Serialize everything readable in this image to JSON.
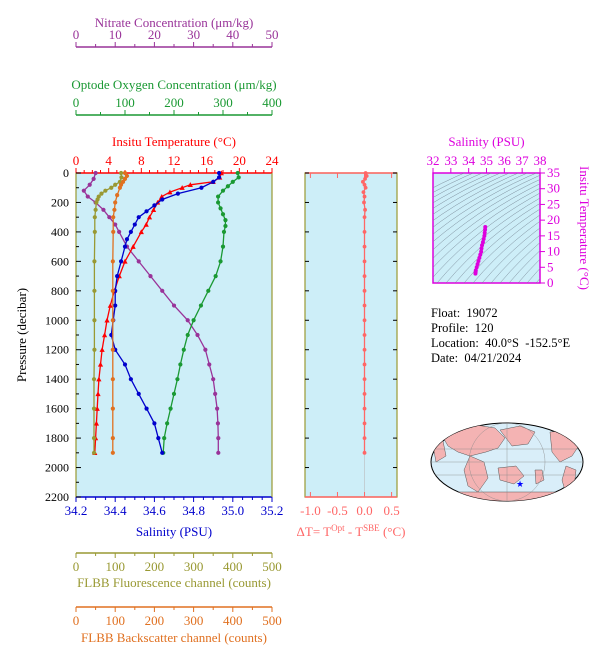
{
  "float_info": {
    "float_label": "Float:",
    "float_id": "19072",
    "profile_label": "Profile:",
    "profile_id": "120",
    "location_label": "Location:",
    "location_value": "40.0°S  -152.5°E",
    "date_label": "Date:",
    "date_value": "04/21/2024"
  },
  "colors": {
    "nitrate": "#993399",
    "oxygen": "#1a9933",
    "temperature": "#ff0000",
    "salinity": "#0000cc",
    "fluorescence": "#999933",
    "backscatter": "#e07020",
    "delta_t": "#ff6666",
    "ts": "#dd00dd",
    "panel_bg": "#cdeef8"
  },
  "chart_data": [
    {
      "type": "line",
      "title": "",
      "ylabel": "Pressure (decibar)",
      "y_ticks": [
        "0",
        "200",
        "400",
        "600",
        "800",
        "1000",
        "1200",
        "1400",
        "1600",
        "1800",
        "2000",
        "2200"
      ],
      "ylim": [
        0,
        2200
      ],
      "y_reversed": true,
      "axes": {
        "nitrate": {
          "label": "Nitrate Concentration (μm/kg)",
          "range": [
            0,
            50
          ],
          "ticks": [
            "0",
            "10",
            "20",
            "30",
            "40",
            "50"
          ]
        },
        "oxygen": {
          "label": "Optode Oxygen Concentration (μm/kg)",
          "range": [
            0,
            400
          ],
          "ticks": [
            "0",
            "100",
            "200",
            "300",
            "400"
          ]
        },
        "temperature": {
          "label": "Insitu Temperature (°C)",
          "range": [
            0,
            24
          ],
          "ticks": [
            "0",
            "4",
            "8",
            "12",
            "16",
            "20",
            "24"
          ]
        },
        "salinity": {
          "label": "Salinity (PSU)",
          "range": [
            34.2,
            35.2
          ],
          "ticks": [
            "34.2",
            "34.4",
            "34.6",
            "34.8",
            "35.0",
            "35.2"
          ]
        },
        "fluorescence": {
          "label": "FLBB Fluorescence channel (counts)",
          "range": [
            0,
            500
          ],
          "ticks": [
            "0",
            "100",
            "200",
            "300",
            "400",
            "500"
          ]
        },
        "backscatter": {
          "label": "FLBB Backscatter channel (counts)",
          "range": [
            0,
            500
          ],
          "ticks": [
            "0",
            "100",
            "200",
            "300",
            "400",
            "500"
          ]
        }
      },
      "series": [
        {
          "name": "Nitrate Concentration (μm/kg)",
          "axis": "nitrate",
          "points": [
            [
              0,
              5
            ],
            [
              40,
              4.5
            ],
            [
              80,
              3.5
            ],
            [
              120,
              2
            ],
            [
              160,
              3
            ],
            [
              200,
              5
            ],
            [
              250,
              7
            ],
            [
              300,
              8.5
            ],
            [
              350,
              10
            ],
            [
              400,
              11
            ],
            [
              500,
              13
            ],
            [
              600,
              16
            ],
            [
              700,
              19
            ],
            [
              800,
              22
            ],
            [
              900,
              25
            ],
            [
              1000,
              28.5
            ],
            [
              1100,
              31
            ],
            [
              1200,
              33
            ],
            [
              1300,
              34
            ],
            [
              1400,
              35
            ],
            [
              1500,
              35.5
            ],
            [
              1600,
              36
            ],
            [
              1700,
              36.2
            ],
            [
              1800,
              36.3
            ],
            [
              1900,
              36.3
            ]
          ]
        },
        {
          "name": "Optode Oxygen Concentration (μm/kg)",
          "axis": "oxygen",
          "points": [
            [
              0,
              330
            ],
            [
              30,
              332
            ],
            [
              60,
              320
            ],
            [
              90,
              310
            ],
            [
              120,
              300
            ],
            [
              160,
              290
            ],
            [
              200,
              290
            ],
            [
              240,
              295
            ],
            [
              280,
              300
            ],
            [
              320,
              305
            ],
            [
              360,
              305
            ],
            [
              400,
              302
            ],
            [
              500,
              300
            ],
            [
              600,
              295
            ],
            [
              700,
              285
            ],
            [
              800,
              270
            ],
            [
              900,
              255
            ],
            [
              1000,
              240
            ],
            [
              1100,
              228
            ],
            [
              1200,
              220
            ],
            [
              1300,
              213
            ],
            [
              1400,
              207
            ],
            [
              1500,
              200
            ],
            [
              1600,
              193
            ],
            [
              1700,
              186
            ],
            [
              1800,
              180
            ],
            [
              1900,
              178
            ]
          ]
        },
        {
          "name": "Insitu Temperature (°C)",
          "axis": "temperature",
          "points": [
            [
              0,
              17.8
            ],
            [
              30,
              17.6
            ],
            [
              60,
              16.8
            ],
            [
              80,
              14
            ],
            [
              100,
              13
            ],
            [
              130,
              11.5
            ],
            [
              160,
              10.5
            ],
            [
              200,
              10
            ],
            [
              250,
              9.5
            ],
            [
              300,
              9
            ],
            [
              350,
              8.6
            ],
            [
              400,
              8
            ],
            [
              500,
              7
            ],
            [
              600,
              6
            ],
            [
              700,
              5.3
            ],
            [
              800,
              4.7
            ],
            [
              900,
              4.2
            ],
            [
              1000,
              3.8
            ],
            [
              1100,
              3.5
            ],
            [
              1200,
              3.2
            ],
            [
              1300,
              3
            ],
            [
              1400,
              2.8
            ],
            [
              1500,
              2.7
            ],
            [
              1600,
              2.6
            ],
            [
              1700,
              2.5
            ],
            [
              1800,
              2.4
            ],
            [
              1900,
              2.3
            ]
          ]
        },
        {
          "name": "Salinity (PSU)",
          "axis": "salinity",
          "points": [
            [
              0,
              34.93
            ],
            [
              30,
              34.93
            ],
            [
              60,
              34.9
            ],
            [
              100,
              34.84
            ],
            [
              140,
              34.72
            ],
            [
              180,
              34.64
            ],
            [
              220,
              34.6
            ],
            [
              260,
              34.56
            ],
            [
              300,
              34.52
            ],
            [
              350,
              34.5
            ],
            [
              400,
              34.48
            ],
            [
              450,
              34.46
            ],
            [
              500,
              34.45
            ],
            [
              600,
              34.43
            ],
            [
              700,
              34.41
            ],
            [
              800,
              34.4
            ],
            [
              900,
              34.4
            ],
            [
              1000,
              34.39
            ],
            [
              1100,
              34.38
            ],
            [
              1200,
              34.4
            ],
            [
              1300,
              34.45
            ],
            [
              1400,
              34.48
            ],
            [
              1500,
              34.52
            ],
            [
              1600,
              34.56
            ],
            [
              1700,
              34.6
            ],
            [
              1800,
              34.62
            ],
            [
              1900,
              34.64
            ]
          ]
        },
        {
          "name": "FLBB Fluorescence channel (counts)",
          "axis": "fluorescence",
          "points": [
            [
              0,
              115
            ],
            [
              30,
              116
            ],
            [
              60,
              112
            ],
            [
              80,
              100
            ],
            [
              100,
              90
            ],
            [
              120,
              75
            ],
            [
              140,
              65
            ],
            [
              160,
              58
            ],
            [
              180,
              55
            ],
            [
              200,
              52
            ],
            [
              250,
              50
            ],
            [
              300,
              48
            ],
            [
              400,
              48
            ],
            [
              600,
              47
            ],
            [
              800,
              47
            ],
            [
              1000,
              47
            ],
            [
              1200,
              47
            ],
            [
              1400,
              46
            ],
            [
              1600,
              46
            ],
            [
              1800,
              46
            ],
            [
              1900,
              46
            ]
          ]
        },
        {
          "name": "FLBB Backscatter channel (counts)",
          "axis": "backscatter",
          "points": [
            [
              0,
              125
            ],
            [
              20,
              130
            ],
            [
              40,
              125
            ],
            [
              60,
              120
            ],
            [
              80,
              115
            ],
            [
              100,
              112
            ],
            [
              150,
              105
            ],
            [
              200,
              100
            ],
            [
              250,
              98
            ],
            [
              300,
              95
            ],
            [
              400,
              95
            ],
            [
              600,
              94
            ],
            [
              800,
              94
            ],
            [
              1000,
              94
            ],
            [
              1200,
              94
            ],
            [
              1400,
              94
            ],
            [
              1600,
              94
            ],
            [
              1800,
              94
            ],
            [
              1900,
              94
            ]
          ]
        }
      ]
    },
    {
      "type": "line",
      "title": "",
      "xlabel_parts": [
        "ΔT= T",
        "Opt",
        " - T",
        "SBE",
        " (°C)"
      ],
      "x_ticks": [
        "-1.0",
        "-0.5",
        "0.0",
        "0.5"
      ],
      "xlim": [
        -1.1,
        0.6
      ],
      "ylim": [
        0,
        2200
      ],
      "series": [
        {
          "name": "ΔT",
          "points": [
            [
              0,
              0.02
            ],
            [
              20,
              0.04
            ],
            [
              40,
              0.01
            ],
            [
              60,
              -0.03
            ],
            [
              80,
              0.0
            ],
            [
              100,
              0.02
            ],
            [
              130,
              -0.02
            ],
            [
              160,
              0.0
            ],
            [
              200,
              -0.01
            ],
            [
              250,
              0.01
            ],
            [
              300,
              0.0
            ],
            [
              400,
              0.0
            ],
            [
              500,
              0.0
            ],
            [
              600,
              0.0
            ],
            [
              700,
              0.0
            ],
            [
              800,
              0.0
            ],
            [
              900,
              0.0
            ],
            [
              1000,
              0.0
            ],
            [
              1100,
              0.0
            ],
            [
              1200,
              0.0
            ],
            [
              1300,
              0.0
            ],
            [
              1400,
              0.0
            ],
            [
              1500,
              0.0
            ],
            [
              1600,
              0.0
            ],
            [
              1700,
              0.0
            ],
            [
              1800,
              0.0
            ],
            [
              1900,
              0.0
            ]
          ]
        }
      ]
    },
    {
      "type": "scatter",
      "title": "",
      "xlabel": "Salinity (PSU)",
      "ylabel": "Insitu Temperature (°C)",
      "x_ticks": [
        "32",
        "33",
        "34",
        "35",
        "36",
        "37",
        "38"
      ],
      "y_ticks": [
        "0",
        "5",
        "10",
        "15",
        "20",
        "25",
        "30",
        "35"
      ],
      "xlim": [
        32,
        38
      ],
      "ylim": [
        0,
        35
      ],
      "series": [
        {
          "name": "T-S",
          "points": [
            [
              34.38,
              3
            ],
            [
              34.39,
              3.5
            ],
            [
              34.4,
              4
            ],
            [
              34.45,
              5
            ],
            [
              34.5,
              6
            ],
            [
              34.55,
              7
            ],
            [
              34.6,
              8
            ],
            [
              34.65,
              9
            ],
            [
              34.7,
              10
            ],
            [
              34.72,
              11
            ],
            [
              34.75,
              12
            ],
            [
              34.8,
              13
            ],
            [
              34.84,
              14
            ],
            [
              34.88,
              15
            ],
            [
              34.9,
              16
            ],
            [
              34.92,
              17
            ],
            [
              34.93,
              17.8
            ]
          ]
        }
      ]
    }
  ],
  "map": {
    "marker": "★"
  }
}
